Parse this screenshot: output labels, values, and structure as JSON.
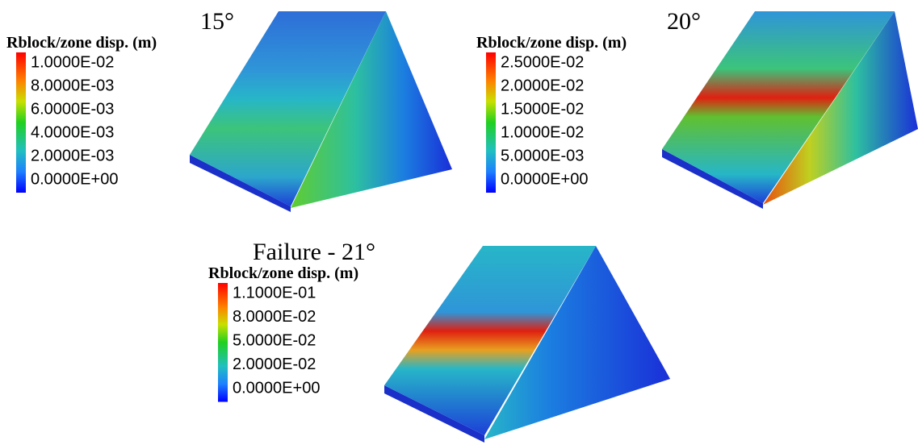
{
  "panels": [
    {
      "title": "15°",
      "legend_title": "Rblock/zone disp. (m)",
      "legend_labels": [
        "1.0000E-02",
        "8.0000E-03",
        "6.0000E-03",
        "4.0000E-03",
        "2.0000E-03",
        "0.0000E+00"
      ]
    },
    {
      "title": "20°",
      "legend_title": "Rblock/zone disp. (m)",
      "legend_labels": [
        "2.5000E-02",
        "2.0000E-02",
        "1.5000E-02",
        "1.0000E-02",
        "5.0000E-03",
        "0.0000E+00"
      ]
    },
    {
      "title": "Failure - 21°",
      "legend_title": "Rblock/zone disp. (m)",
      "legend_labels": [
        "1.1000E-01",
        "8.0000E-02",
        "5.0000E-02",
        "2.0000E-02",
        "0.0000E+00"
      ]
    }
  ]
}
